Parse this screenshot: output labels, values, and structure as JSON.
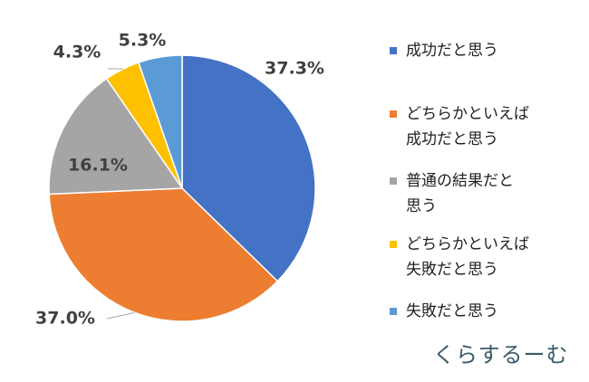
{
  "chart_data": {
    "type": "pie",
    "categories": [
      "成功だと思う",
      "どちらかといえば\n成功だと思う",
      "普通の結果だと\n思う",
      "どちらかといえば\n失敗だと思う",
      "失敗だと思う"
    ],
    "values": [
      37.3,
      37.0,
      16.1,
      4.3,
      5.3
    ],
    "value_labels": [
      "37.3%",
      "37.0%",
      "16.1%",
      "4.3%",
      "5.3%"
    ],
    "colors": [
      "#4472c4",
      "#ed7d31",
      "#a5a5a5",
      "#ffc000",
      "#5b9bd5"
    ],
    "legend": "right"
  },
  "watermark": "くらするーむ"
}
